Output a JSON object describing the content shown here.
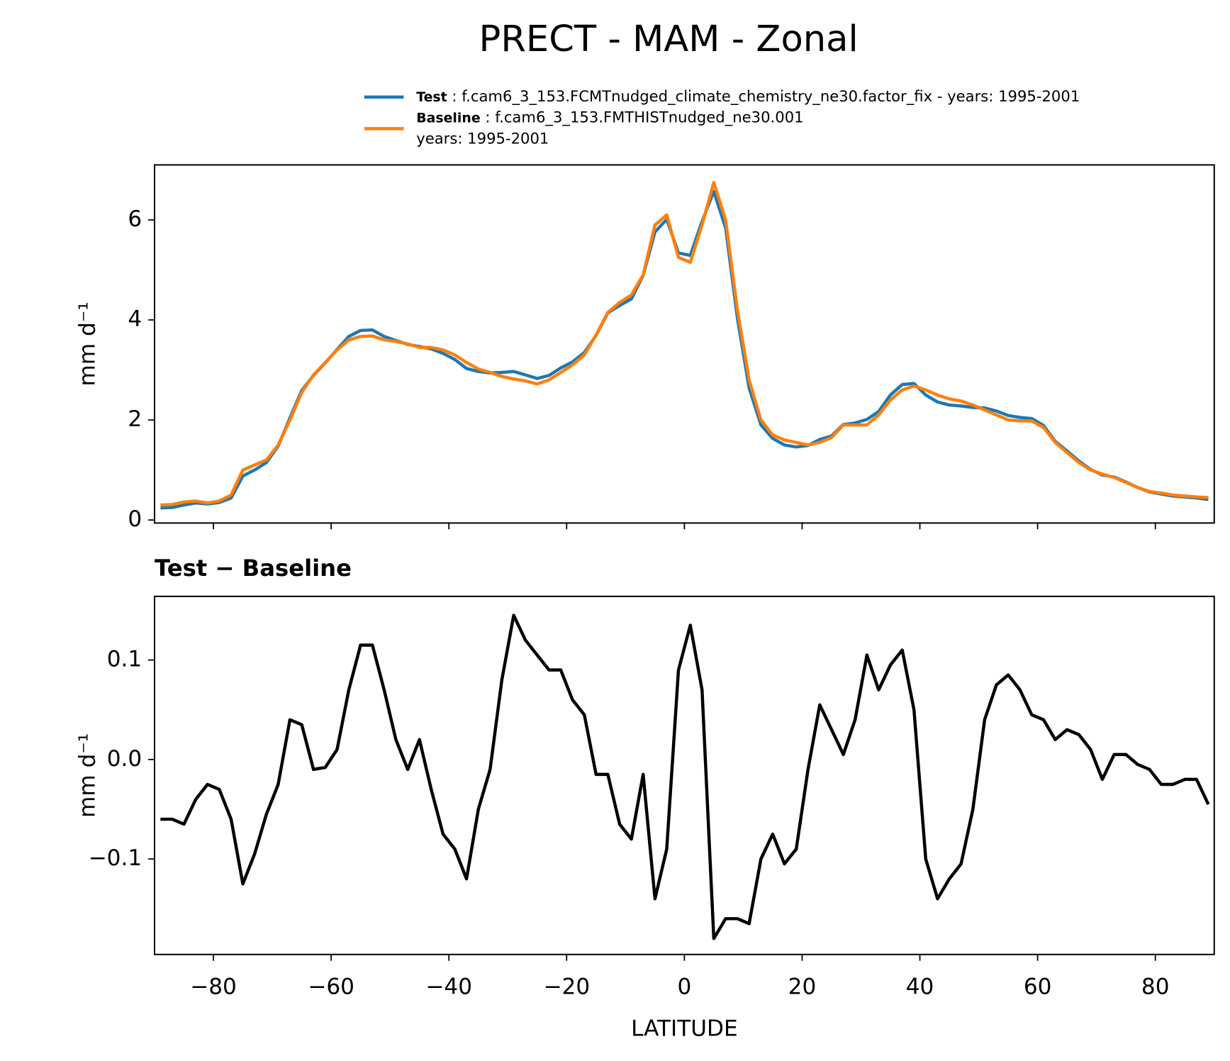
{
  "chart_data": [
    {
      "type": "line",
      "title": "PRECT - MAM - Zonal",
      "ylabel": "mm d⁻¹",
      "x": [
        -89,
        -87,
        -85,
        -83,
        -81,
        -79,
        -77,
        -75,
        -73,
        -71,
        -69,
        -67,
        -65,
        -63,
        -61,
        -59,
        -57,
        -55,
        -53,
        -51,
        -49,
        -47,
        -45,
        -43,
        -41,
        -39,
        -37,
        -35,
        -33,
        -31,
        -29,
        -27,
        -25,
        -23,
        -21,
        -19,
        -17,
        -15,
        -13,
        -11,
        -9,
        -7,
        -5,
        -3,
        -1,
        1,
        3,
        5,
        7,
        9,
        11,
        13,
        15,
        17,
        19,
        21,
        23,
        25,
        27,
        29,
        31,
        33,
        35,
        37,
        39,
        41,
        43,
        45,
        47,
        49,
        51,
        53,
        55,
        57,
        59,
        61,
        63,
        65,
        67,
        69,
        71,
        73,
        75,
        77,
        79,
        81,
        83,
        85,
        87,
        89
      ],
      "series": [
        {
          "name": "Test",
          "description": [
            "f.cam6_3_153.FCMTnudged_climate_chemistry_ne30.factor_fix - years: 1995-2001"
          ],
          "color": "#1f77b4",
          "values": [
            0.24,
            0.25,
            0.3,
            0.34,
            0.32,
            0.35,
            0.44,
            0.88,
            1.0,
            1.15,
            1.48,
            2.04,
            2.59,
            2.89,
            3.14,
            3.41,
            3.67,
            3.79,
            3.8,
            3.67,
            3.59,
            3.51,
            3.47,
            3.42,
            3.33,
            3.21,
            3.03,
            2.97,
            2.94,
            2.95,
            2.97,
            2.9,
            2.83,
            2.89,
            3.04,
            3.16,
            3.35,
            3.69,
            4.14,
            4.29,
            4.42,
            4.89,
            5.76,
            6.01,
            5.34,
            5.29,
            5.97,
            6.57,
            5.84,
            4.04,
            2.64,
            1.9,
            1.63,
            1.5,
            1.46,
            1.49,
            1.61,
            1.68,
            1.91,
            1.94,
            2.01,
            2.17,
            2.5,
            2.71,
            2.73,
            2.5,
            2.36,
            2.3,
            2.28,
            2.25,
            2.24,
            2.18,
            2.09,
            2.05,
            2.03,
            1.89,
            1.57,
            1.38,
            1.18,
            1.01,
            0.9,
            0.86,
            0.76,
            0.65,
            0.56,
            0.52,
            0.48,
            0.46,
            0.44,
            0.41
          ]
        },
        {
          "name": "Baseline",
          "description": [
            "f.cam6_3_153.FMTHISTnudged_ne30.001",
            "years: 1995-2001"
          ],
          "color": "#ff7f0e",
          "values": [
            0.3,
            0.31,
            0.36,
            0.38,
            0.34,
            0.38,
            0.5,
            1.0,
            1.1,
            1.2,
            1.5,
            2.0,
            2.55,
            2.9,
            3.15,
            3.4,
            3.6,
            3.67,
            3.68,
            3.6,
            3.57,
            3.52,
            3.45,
            3.45,
            3.4,
            3.3,
            3.15,
            3.02,
            2.95,
            2.87,
            2.82,
            2.78,
            2.72,
            2.8,
            2.95,
            3.1,
            3.3,
            3.7,
            4.15,
            4.35,
            4.5,
            4.9,
            5.9,
            6.1,
            5.25,
            5.15,
            5.9,
            6.75,
            6.0,
            4.2,
            2.8,
            2.0,
            1.7,
            1.6,
            1.55,
            1.5,
            1.55,
            1.65,
            1.9,
            1.9,
            1.9,
            2.1,
            2.4,
            2.6,
            2.68,
            2.6,
            2.5,
            2.42,
            2.38,
            2.3,
            2.2,
            2.1,
            2.0,
            1.98,
            1.98,
            1.85,
            1.55,
            1.35,
            1.15,
            1.0,
            0.92,
            0.85,
            0.75,
            0.65,
            0.57,
            0.54,
            0.5,
            0.48,
            0.46,
            0.45
          ]
        }
      ],
      "xlim": [
        -90,
        90
      ],
      "ylim": [
        -0.06,
        7.1
      ],
      "yticks": [
        0,
        2,
        4,
        6
      ]
    },
    {
      "type": "line",
      "title": "Test − Baseline",
      "xlabel": "LATITUDE",
      "ylabel": "mm d⁻¹",
      "x": [
        -89,
        -87,
        -85,
        -83,
        -81,
        -79,
        -77,
        -75,
        -73,
        -71,
        -69,
        -67,
        -65,
        -63,
        -61,
        -59,
        -57,
        -55,
        -53,
        -51,
        -49,
        -47,
        -45,
        -43,
        -41,
        -39,
        -37,
        -35,
        -33,
        -31,
        -29,
        -27,
        -25,
        -23,
        -21,
        -19,
        -17,
        -15,
        -13,
        -11,
        -9,
        -7,
        -5,
        -3,
        -1,
        1,
        3,
        5,
        7,
        9,
        11,
        13,
        15,
        17,
        19,
        21,
        23,
        25,
        27,
        29,
        31,
        33,
        35,
        37,
        39,
        41,
        43,
        45,
        47,
        49,
        51,
        53,
        55,
        57,
        59,
        61,
        63,
        65,
        67,
        69,
        71,
        73,
        75,
        77,
        79,
        81,
        83,
        85,
        87,
        89
      ],
      "series": [
        {
          "color": "#000000",
          "values": [
            -0.06,
            -0.06,
            -0.065,
            -0.04,
            -0.025,
            -0.03,
            -0.06,
            -0.125,
            -0.095,
            -0.055,
            -0.025,
            0.04,
            0.035,
            -0.01,
            -0.008,
            0.01,
            0.07,
            0.115,
            0.115,
            0.07,
            0.02,
            -0.01,
            0.02,
            -0.03,
            -0.075,
            -0.09,
            -0.12,
            -0.05,
            -0.01,
            0.08,
            0.145,
            0.12,
            0.105,
            0.09,
            0.09,
            0.06,
            0.045,
            -0.015,
            -0.015,
            -0.065,
            -0.08,
            -0.015,
            -0.14,
            -0.09,
            0.09,
            0.135,
            0.07,
            -0.18,
            -0.16,
            -0.16,
            -0.165,
            -0.1,
            -0.075,
            -0.105,
            -0.09,
            -0.01,
            0.055,
            0.03,
            0.005,
            0.04,
            0.105,
            0.07,
            0.095,
            0.11,
            0.05,
            -0.1,
            -0.14,
            -0.12,
            -0.105,
            -0.05,
            0.04,
            0.075,
            0.085,
            0.07,
            0.045,
            0.04,
            0.02,
            0.03,
            0.025,
            0.01,
            -0.02,
            0.005,
            0.005,
            -0.005,
            -0.01,
            -0.025,
            -0.025,
            -0.02,
            -0.02,
            -0.045
          ]
        }
      ],
      "xlim": [
        -90,
        90
      ],
      "ylim": [
        -0.196,
        0.164
      ],
      "xticks": [
        {
          "value": -80,
          "label": "−80"
        },
        {
          "value": -60,
          "label": "−60"
        },
        {
          "value": -40,
          "label": "−40"
        },
        {
          "value": -20,
          "label": "−20"
        },
        0,
        20,
        40,
        60,
        80
      ],
      "yticks": [
        {
          "value": -0.1,
          "label": "−0.1"
        },
        {
          "value": 0,
          "label": "0.0"
        },
        0.1
      ]
    }
  ]
}
